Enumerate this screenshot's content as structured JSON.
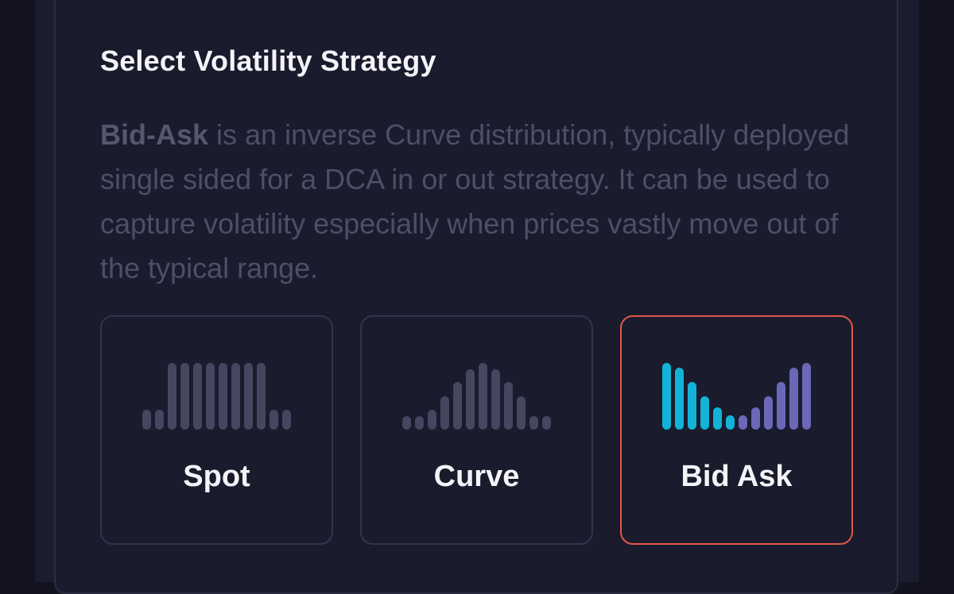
{
  "strategy": {
    "title": "Select Volatility Strategy",
    "description_bold": "Bid-Ask",
    "description_rest": " is an inverse Curve distribution, typically deployed single sided for a DCA in or out strategy. It can be used to capture volatility especially when prices vastly move out of the typical range.",
    "selected": "Bid Ask",
    "colors": {
      "selected_border": "#e1574a",
      "inactive_bar": "#45465f",
      "bid_bar": "#12b3d6",
      "ask_bar": "#6b68b8"
    },
    "options": [
      {
        "label": "Spot",
        "icon": "spot-distribution-icon",
        "bar_levels": [
          0.3,
          0.3,
          1,
          1,
          1,
          1,
          1,
          1,
          1,
          1,
          0.3,
          0.3
        ]
      },
      {
        "label": "Curve",
        "icon": "curve-distribution-icon",
        "bar_levels": [
          0.2,
          0.2,
          0.3,
          0.5,
          0.72,
          0.9,
          1,
          0.9,
          0.72,
          0.5,
          0.2,
          0.2
        ]
      },
      {
        "label": "Bid Ask",
        "icon": "bid-ask-distribution-icon",
        "bar_levels": [
          1,
          0.93,
          0.72,
          0.5,
          0.33,
          0.22,
          0.22,
          0.33,
          0.5,
          0.72,
          0.93,
          1
        ]
      }
    ]
  }
}
